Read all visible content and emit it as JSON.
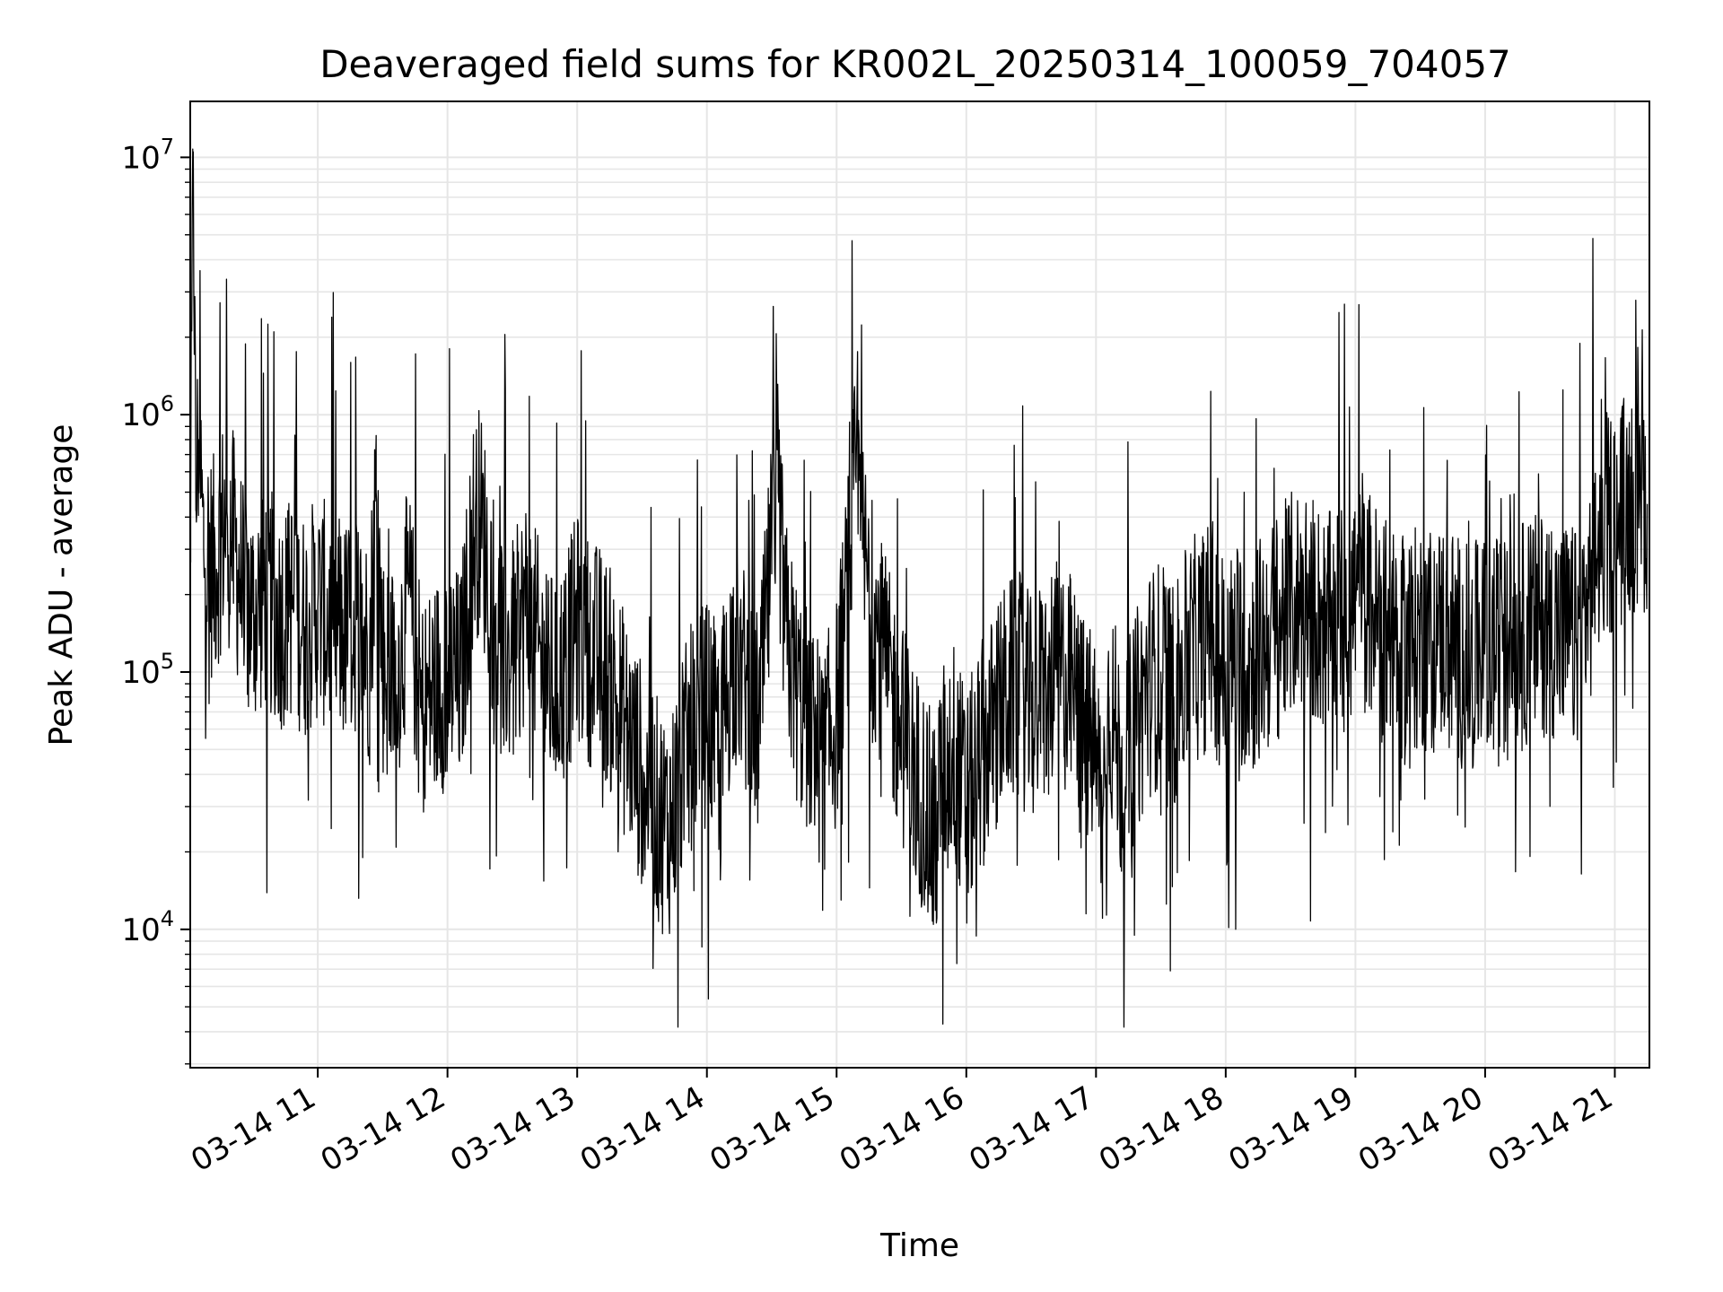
{
  "chart_data": {
    "type": "line",
    "title": "Deaveraged field sums for KR002L_20250314_100059_704057",
    "xlabel": "Time",
    "ylabel": "Peak ADU - average",
    "yscale": "log",
    "ylim": [
      2900,
      16500000
    ],
    "xlim": [
      "03-14 10:01",
      "03-14 21:16"
    ],
    "grid": true,
    "line_color": "#000000",
    "grid_color": "#e6e6e6",
    "x_ticks": [
      {
        "label": "03-14 11",
        "hour": 11
      },
      {
        "label": "03-14 12",
        "hour": 12
      },
      {
        "label": "03-14 13",
        "hour": 13
      },
      {
        "label": "03-14 14",
        "hour": 14
      },
      {
        "label": "03-14 15",
        "hour": 15
      },
      {
        "label": "03-14 16",
        "hour": 16
      },
      {
        "label": "03-14 17",
        "hour": 17
      },
      {
        "label": "03-14 18",
        "hour": 18
      },
      {
        "label": "03-14 19",
        "hour": 19
      },
      {
        "label": "03-14 20",
        "hour": 20
      },
      {
        "label": "03-14 21",
        "hour": 21
      }
    ],
    "y_ticks": [
      {
        "base": "10",
        "exp": "4",
        "value": 10000
      },
      {
        "base": "10",
        "exp": "5",
        "value": 100000
      },
      {
        "base": "10",
        "exp": "6",
        "value": 1000000
      },
      {
        "base": "10",
        "exp": "7",
        "value": 10000000
      }
    ],
    "series": [
      {
        "x_hours": [
          10.02,
          10.04,
          10.06,
          10.08,
          10.12,
          10.2,
          10.3,
          10.4,
          10.5,
          10.6,
          10.7,
          10.8,
          10.9,
          11.0,
          11.1,
          11.2,
          11.3,
          11.4,
          11.45,
          11.5,
          11.6,
          11.7,
          11.8,
          11.9,
          12.0,
          12.1,
          12.2,
          12.25,
          12.3,
          12.4,
          12.5,
          12.6,
          12.7,
          12.8,
          12.9,
          13.0,
          13.1,
          13.2,
          13.3,
          13.4,
          13.5,
          13.6,
          13.7,
          13.8,
          13.9,
          14.0,
          14.1,
          14.2,
          14.3,
          14.4,
          14.5,
          14.55,
          14.6,
          14.7,
          14.8,
          14.9,
          15.0,
          15.1,
          15.15,
          15.2,
          15.3,
          15.4,
          15.5,
          15.6,
          15.7,
          15.75,
          15.8,
          15.9,
          16.0,
          16.1,
          16.2,
          16.3,
          16.4,
          16.5,
          16.6,
          16.7,
          16.8,
          16.9,
          17.0,
          17.05,
          17.1,
          17.2,
          17.3,
          17.4,
          17.5,
          17.6,
          17.7,
          17.8,
          17.9,
          18.0,
          18.1,
          18.2,
          18.3,
          18.4,
          18.5,
          18.6,
          18.7,
          18.8,
          18.9,
          19.0,
          19.1,
          19.2,
          19.3,
          19.4,
          19.5,
          19.6,
          19.7,
          19.8,
          19.9,
          20.0,
          20.1,
          20.2,
          20.3,
          20.4,
          20.5,
          20.6,
          20.7,
          20.8,
          20.9,
          21.0,
          21.1,
          21.2,
          21.25
        ],
        "values": [
          400000,
          10500000,
          450000,
          800000,
          300000,
          250000,
          420000,
          230000,
          170000,
          200000,
          160000,
          185000,
          150000,
          180000,
          155000,
          140000,
          160000,
          120000,
          500000,
          110000,
          90000,
          200000,
          70000,
          85000,
          100000,
          90000,
          350000,
          400000,
          280000,
          130000,
          110000,
          180000,
          120000,
          90000,
          100000,
          150000,
          120000,
          110000,
          80000,
          55000,
          40000,
          30000,
          25000,
          40000,
          60000,
          70000,
          50000,
          120000,
          90000,
          60000,
          300000,
          500000,
          150000,
          80000,
          60000,
          45000,
          70000,
          250000,
          600000,
          300000,
          150000,
          90000,
          60000,
          40000,
          30000,
          20000,
          35000,
          50000,
          30000,
          45000,
          60000,
          80000,
          90000,
          70000,
          85000,
          100000,
          90000,
          60000,
          50000,
          25000,
          80000,
          40000,
          60000,
          90000,
          100000,
          80000,
          110000,
          130000,
          140000,
          100000,
          120000,
          110000,
          130000,
          150000,
          180000,
          200000,
          170000,
          150000,
          160000,
          200000,
          190000,
          150000,
          130000,
          120000,
          140000,
          130000,
          150000,
          120000,
          110000,
          130000,
          120000,
          130000,
          140000,
          150000,
          160000,
          140000,
          130000,
          200000,
          350000,
          400000,
          450000,
          500000,
          450000
        ]
      }
    ]
  }
}
